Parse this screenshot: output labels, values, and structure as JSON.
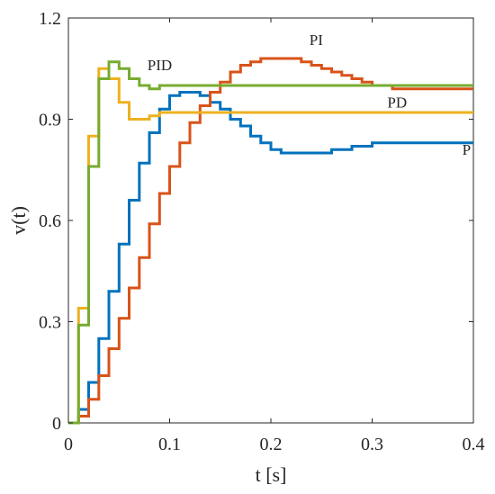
{
  "chart_data": {
    "type": "line",
    "step": true,
    "title": "",
    "xlabel": "t [s]",
    "ylabel": "v(t)",
    "xlim": [
      0,
      0.4
    ],
    "ylim": [
      0,
      1.2
    ],
    "xticks": [
      0,
      0.1,
      0.2,
      0.3,
      0.4
    ],
    "xtick_labels": [
      "0",
      "0.1",
      "0.2",
      "0.3",
      "0.4"
    ],
    "yticks": [
      0,
      0.3,
      0.6,
      0.9,
      1.2
    ],
    "ytick_labels": [
      "0",
      "0.3",
      "0.6",
      "0.9",
      "1.2"
    ],
    "grid": false,
    "legend": "none",
    "series": [
      {
        "name": "P",
        "color": "#0072BD",
        "x": [
          0,
          0.01,
          0.02,
          0.03,
          0.04,
          0.05,
          0.06,
          0.07,
          0.08,
          0.09,
          0.1,
          0.11,
          0.12,
          0.13,
          0.14,
          0.15,
          0.16,
          0.17,
          0.18,
          0.19,
          0.2,
          0.21,
          0.22,
          0.23,
          0.24,
          0.25,
          0.26,
          0.27,
          0.28,
          0.29,
          0.3,
          0.31,
          0.32,
          0.33,
          0.34,
          0.35,
          0.36,
          0.37,
          0.38,
          0.39,
          0.4
        ],
        "y": [
          0,
          0.04,
          0.12,
          0.25,
          0.39,
          0.53,
          0.66,
          0.77,
          0.86,
          0.93,
          0.97,
          0.98,
          0.98,
          0.97,
          0.95,
          0.93,
          0.9,
          0.88,
          0.85,
          0.83,
          0.81,
          0.8,
          0.8,
          0.8,
          0.8,
          0.8,
          0.81,
          0.81,
          0.82,
          0.82,
          0.83,
          0.83,
          0.83,
          0.83,
          0.83,
          0.83,
          0.83,
          0.83,
          0.83,
          0.83,
          0.83
        ]
      },
      {
        "name": "PI",
        "color": "#D95319",
        "x": [
          0,
          0.01,
          0.02,
          0.03,
          0.04,
          0.05,
          0.06,
          0.07,
          0.08,
          0.09,
          0.1,
          0.11,
          0.12,
          0.13,
          0.14,
          0.15,
          0.16,
          0.17,
          0.18,
          0.19,
          0.2,
          0.21,
          0.22,
          0.23,
          0.24,
          0.25,
          0.26,
          0.27,
          0.28,
          0.29,
          0.3,
          0.31,
          0.32,
          0.33,
          0.34,
          0.35,
          0.36,
          0.37,
          0.38,
          0.39,
          0.4
        ],
        "y": [
          0,
          0.02,
          0.07,
          0.14,
          0.22,
          0.31,
          0.4,
          0.49,
          0.59,
          0.68,
          0.76,
          0.83,
          0.89,
          0.94,
          0.98,
          1.01,
          1.04,
          1.06,
          1.07,
          1.08,
          1.08,
          1.08,
          1.08,
          1.07,
          1.06,
          1.05,
          1.04,
          1.03,
          1.02,
          1.01,
          1.0,
          1.0,
          0.99,
          0.99,
          0.99,
          0.99,
          0.99,
          0.99,
          0.99,
          0.99,
          0.99
        ]
      },
      {
        "name": "PD",
        "color": "#EDB120",
        "x": [
          0,
          0.01,
          0.02,
          0.03,
          0.04,
          0.05,
          0.06,
          0.07,
          0.08,
          0.09,
          0.1,
          0.11,
          0.12,
          0.15,
          0.2,
          0.25,
          0.3,
          0.35,
          0.4
        ],
        "y": [
          0,
          0.34,
          0.85,
          1.05,
          1.02,
          0.95,
          0.9,
          0.9,
          0.91,
          0.92,
          0.92,
          0.92,
          0.92,
          0.92,
          0.92,
          0.92,
          0.92,
          0.92,
          0.92
        ]
      },
      {
        "name": "PID",
        "color": "#77AC30",
        "x": [
          0,
          0.01,
          0.02,
          0.03,
          0.04,
          0.05,
          0.06,
          0.07,
          0.08,
          0.09,
          0.1,
          0.12,
          0.15,
          0.2,
          0.25,
          0.3,
          0.35,
          0.4
        ],
        "y": [
          0,
          0.29,
          0.76,
          1.02,
          1.07,
          1.05,
          1.02,
          1.0,
          0.99,
          1.0,
          1.0,
          1.0,
          1.0,
          1.0,
          1.0,
          1.0,
          1.0,
          1.0
        ]
      }
    ],
    "annotations": [
      {
        "text": "PID",
        "x": 0.078,
        "y": 1.045
      },
      {
        "text": "PI",
        "x": 0.238,
        "y": 1.12
      },
      {
        "text": "PD",
        "x": 0.315,
        "y": 0.935
      },
      {
        "text": "P",
        "x": 0.389,
        "y": 0.795
      }
    ]
  }
}
